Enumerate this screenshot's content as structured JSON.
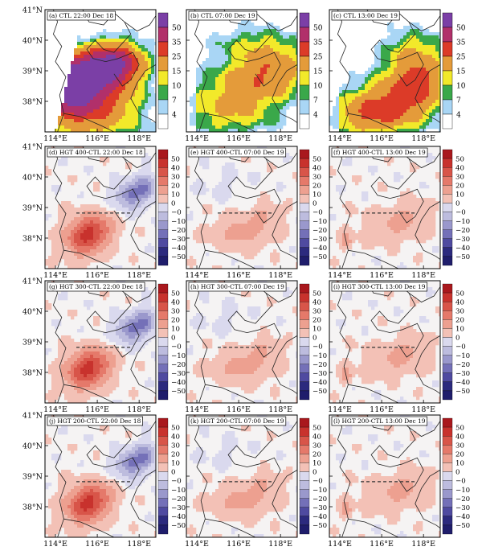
{
  "figure": {
    "lat_labels": [
      "41°N",
      "40°N",
      "39°N",
      "38°N"
    ],
    "lon_labels": [
      "114°E",
      "116°E",
      "118°E"
    ],
    "lat_values": [
      41,
      40,
      39,
      38
    ],
    "lon_values": [
      114,
      116,
      118
    ],
    "lon_range": [
      113.5,
      118.8
    ],
    "lat_range": [
      37.0,
      41.0
    ],
    "reference_line": {
      "lon": [
        115.0,
        117.6
      ],
      "lat": 38.82
    },
    "panels": [
      {
        "id": "a",
        "label": "(a) CTL 22:00 Dec 18",
        "type": "ctl",
        "time": "2200"
      },
      {
        "id": "b",
        "label": "(b) CTL 07:00 Dec 19",
        "type": "ctl",
        "time": "0700"
      },
      {
        "id": "c",
        "label": "(c) CTL 13:00 Dec 19",
        "type": "ctl",
        "time": "1300"
      },
      {
        "id": "d",
        "label": "(d) HGT 400-CTL 22:00 Dec 18",
        "type": "diff",
        "time": "2200"
      },
      {
        "id": "e",
        "label": "(e) HGT 400-CTL 07:00 Dec 19",
        "type": "diff",
        "time": "0700"
      },
      {
        "id": "f",
        "label": "(f) HGT 400-CTL 13:00 Dec 19",
        "type": "diff",
        "time": "1300"
      },
      {
        "id": "g",
        "label": "(g) HGT 300-CTL 22:00 Dec 18",
        "type": "diff",
        "time": "2200"
      },
      {
        "id": "h",
        "label": "(h) HGT 300-CTL 07:00 Dec 19",
        "type": "diff",
        "time": "0700"
      },
      {
        "id": "i",
        "label": "(i) HGT 300-CTL 13:00 Dec 19",
        "type": "diff",
        "time": "1300"
      },
      {
        "id": "j",
        "label": "(j) HGT 200-CTL 22:00 Dec 18",
        "type": "diff",
        "time": "2200"
      },
      {
        "id": "k",
        "label": "(k) HGT 200-CTL 07:00 Dec 19",
        "type": "diff",
        "time": "0700"
      },
      {
        "id": "l",
        "label": "(l) HGT 200-CTL 13:00 Dec 19",
        "type": "diff",
        "time": "1300"
      }
    ],
    "ctl_colorbar": {
      "tick_labels": [
        "50",
        "35",
        "25",
        "15",
        "10",
        "7",
        "4"
      ],
      "colors": [
        "#ffffff",
        "#a9d6f5",
        "#3aa84a",
        "#f2e92a",
        "#e49b3a",
        "#dc3b28",
        "#b1306a",
        "#7b3fa6"
      ]
    },
    "diff_colorbar": {
      "tick_labels": [
        "50",
        "40",
        "30",
        "20",
        "10",
        "0",
        "−0",
        "−10",
        "−20",
        "−30",
        "−40",
        "−50"
      ],
      "colors": [
        "#2c2a7e",
        "#4f4aa0",
        "#7470b8",
        "#9a98cc",
        "#bdbcde",
        "#dad9ee",
        "#f3c1b6",
        "#eda090",
        "#e5796a",
        "#d85549",
        "#c8322d",
        "#a9181d"
      ]
    }
  }
}
